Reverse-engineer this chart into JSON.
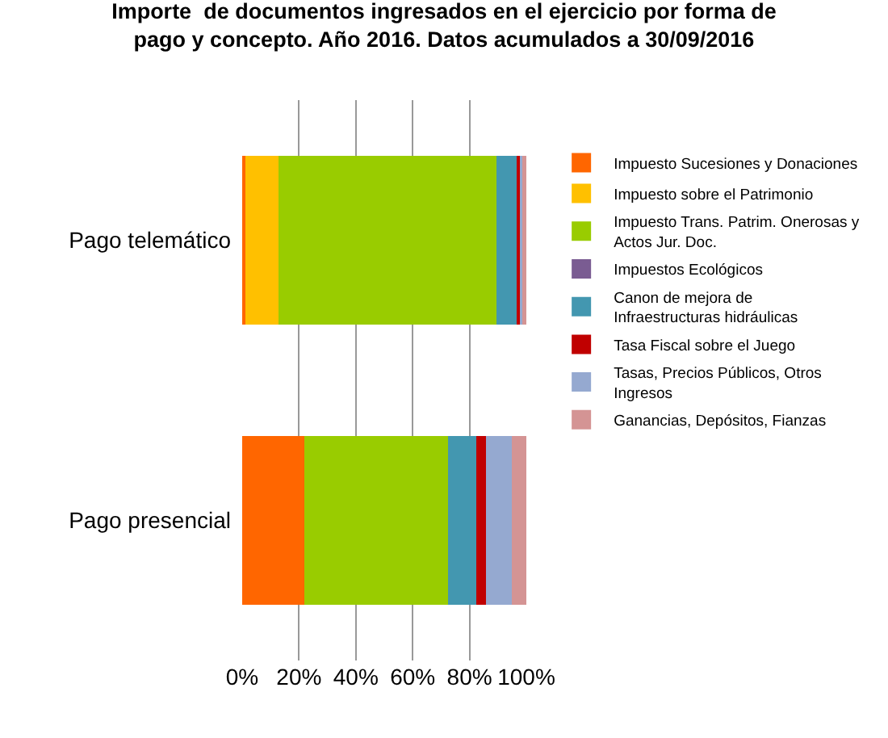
{
  "chart_data": {
    "type": "bar",
    "orientation": "horizontal",
    "stacked": true,
    "title": "Importe  de documentos ingresados en el ejercicio por forma de pago y concepto. Año 2016. Datos acumulados a 30/09/2016",
    "categories": [
      "Pago telemático",
      "Pago presencial"
    ],
    "series": [
      {
        "name": "Impuesto Sucesiones y Donaciones",
        "color": "#ff6600",
        "values": [
          1.1,
          22.0
        ]
      },
      {
        "name": "Impuesto sobre el Patrimonio",
        "color": "#ffc000",
        "values": [
          11.8,
          0
        ]
      },
      {
        "name": "Impuesto Trans. Patrim. Onerosas y Actos Jur. Doc.",
        "color": "#99cc00",
        "values": [
          76.5,
          50.4
        ]
      },
      {
        "name": "Impuestos Ecológicos",
        "color": "#7a5c92",
        "values": [
          0.2,
          0.1
        ]
      },
      {
        "name": "Canon de mejora de Infraestructuras hidráulicas",
        "color": "#4397b0",
        "values": [
          6.9,
          9.9
        ]
      },
      {
        "name": "Tasa Fiscal sobre el Juego",
        "color": "#c00000",
        "values": [
          1.1,
          3.5
        ]
      },
      {
        "name": "Tasas, Precios Públicos, Otros Ingresos",
        "color": "#95a9d0",
        "values": [
          0.9,
          9.1
        ]
      },
      {
        "name": "Ganancias, Depósitos, Fianzas",
        "color": "#d49494",
        "values": [
          1.5,
          5.0
        ]
      }
    ],
    "xlim": [
      0,
      100
    ],
    "xticks": [
      {
        "value": 0,
        "label": "0%"
      },
      {
        "value": 20,
        "label": "20%"
      },
      {
        "value": 40,
        "label": "40%"
      },
      {
        "value": 60,
        "label": "60%"
      },
      {
        "value": 80,
        "label": "80%"
      },
      {
        "value": 100,
        "label": "100%"
      }
    ],
    "grid": "x",
    "legend": "right"
  }
}
